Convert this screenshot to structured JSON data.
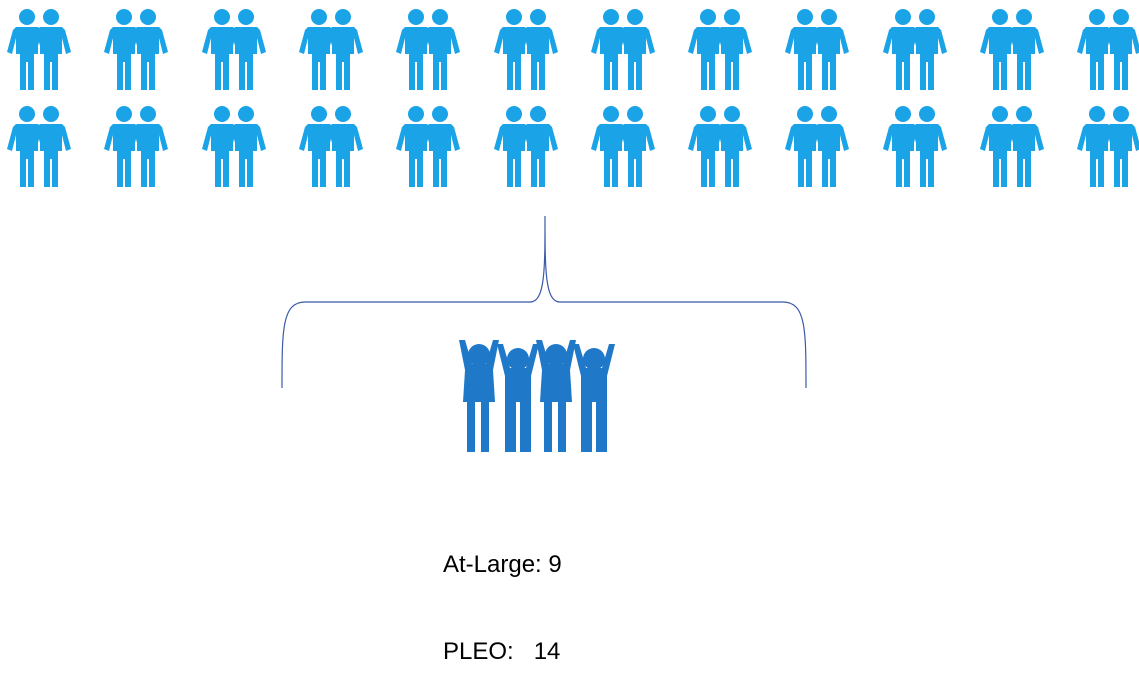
{
  "icons": {
    "pair_icon": "two-people-icon",
    "group_icon": "group-celebrating-icon",
    "rows": 2,
    "per_row": 12,
    "pair_color": "#1AA3E6",
    "group_color": "#1F78C8",
    "bracket_color": "#3A5BA8"
  },
  "labels": {
    "at_large": "At-Large: 9",
    "pleo": "PLEO:   14"
  }
}
